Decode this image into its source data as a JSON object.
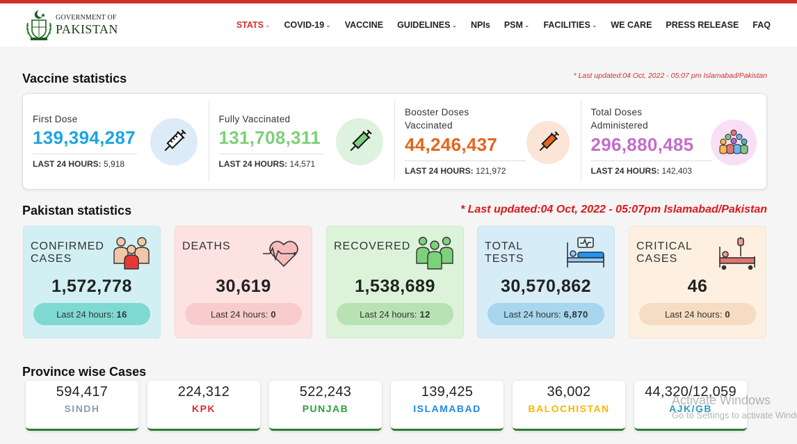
{
  "brand": {
    "line1": "GOVERNMENT OF",
    "line2": "PAKISTAN"
  },
  "nav": [
    {
      "label": "STATS",
      "dropdown": true,
      "active": true
    },
    {
      "label": "COVID-19",
      "dropdown": true
    },
    {
      "label": "VACCINE",
      "dropdown": false
    },
    {
      "label": "GUIDELINES",
      "dropdown": true
    },
    {
      "label": "NPIs",
      "dropdown": false
    },
    {
      "label": "PSM",
      "dropdown": true
    },
    {
      "label": "FACILITIES",
      "dropdown": true
    },
    {
      "label": "WE CARE",
      "dropdown": false
    },
    {
      "label": "PRESS RELEASE",
      "dropdown": false
    },
    {
      "label": "FAQ",
      "dropdown": false
    }
  ],
  "vaccine": {
    "title": "Vaccine statistics",
    "updated": "* Last updated:04 Oct, 2022 - 05:07 pm Islamabad/Pakistan",
    "cards": [
      {
        "label": "First Dose",
        "value": "139,394,287",
        "last24_label": "LAST 24 HOURS:",
        "last24": "5,918",
        "color": "#1aa6e0",
        "icon_bg": "#dcebf7",
        "icon": "syringe-icon"
      },
      {
        "label": "Fully Vaccinated",
        "value": "131,708,311",
        "last24_label": "LAST 24 HOURS:",
        "last24": "14,571",
        "color": "#7dd07a",
        "icon_bg": "#dff2df",
        "icon": "syringe-green-icon"
      },
      {
        "label": "Booster Doses Vaccinated",
        "value": "44,246,437",
        "last24_label": "LAST 24 HOURS:",
        "last24": "121,972",
        "color": "#e2661d",
        "icon_bg": "#fbe5d6",
        "icon": "syringe-orange-icon"
      },
      {
        "label": "Total Doses Administered",
        "value": "296,880,485",
        "last24_label": "LAST 24 HOURS:",
        "last24": "142,403",
        "color": "#c46dc9",
        "icon_bg": "#f7dff6",
        "icon": "crowd-icon"
      }
    ]
  },
  "pakistan": {
    "title": "Pakistan statistics",
    "updated": "* Last updated:04 Oct, 2022 - 05:07pm Islamabad/Pakistan",
    "last24_prefix": "Last 24 hours:",
    "cards": [
      {
        "label": "CONFIRMED CASES",
        "value": "1,572,778",
        "last24": "16",
        "bg": "#d2f0f4",
        "pill": "#7fd9d3",
        "icon": "family-icon"
      },
      {
        "label": "DEATHS",
        "value": "30,619",
        "last24": "0",
        "bg": "#fde2e2",
        "pill": "#f8cccc",
        "icon": "heartbeat-icon"
      },
      {
        "label": "RECOVERED",
        "value": "1,538,689",
        "last24": "12",
        "bg": "#dcf3da",
        "pill": "#b9e2b4",
        "icon": "people-green-icon"
      },
      {
        "label": "TOTAL TESTS",
        "value": "30,570,862",
        "last24": "6,870",
        "bg": "#d6ecf7",
        "pill": "#a7d6ee",
        "icon": "hospital-bed-icon"
      },
      {
        "label": "CRITICAL CASES",
        "value": "46",
        "last24": "0",
        "bg": "#fdf0e1",
        "pill": "#f5dcc2",
        "icon": "icu-bed-icon"
      }
    ]
  },
  "province": {
    "title": "Province wise Cases",
    "cards": [
      {
        "value": "594,417",
        "name": "SINDH",
        "color": "#8a9bb5"
      },
      {
        "value": "224,312",
        "name": "KPK",
        "color": "#d32f2f"
      },
      {
        "value": "522,243",
        "name": "PUNJAB",
        "color": "#2e9e3e"
      },
      {
        "value": "139,425",
        "name": "ISLAMABAD",
        "color": "#1e88e5"
      },
      {
        "value": "36,002",
        "name": "BALOCHISTAN",
        "color": "#f5b800"
      },
      {
        "value": "44,320/12,059",
        "name": "AJK/GB",
        "color": "#2a9bbf"
      }
    ]
  },
  "watermark": {
    "line1": "Activate Windows",
    "line2": "Go to Settings to activate Windows."
  }
}
